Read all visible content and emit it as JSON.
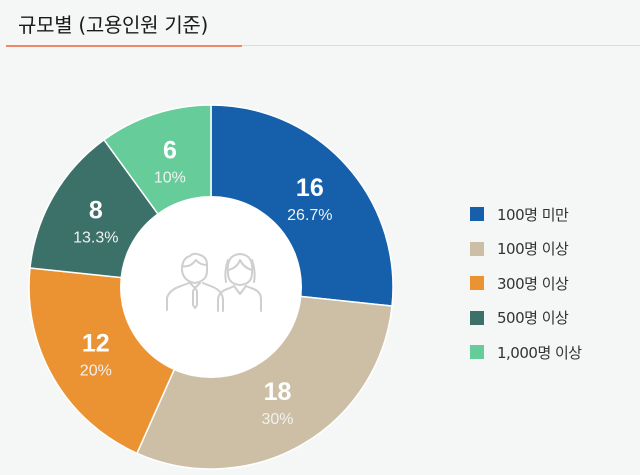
{
  "header": {
    "title": "규모별 (고용인원 기준)",
    "accent_color": "#f0866a"
  },
  "center_icon": "people-icon",
  "legend": [
    {
      "label": "100명 미만",
      "color": "#155fab"
    },
    {
      "label": "100명 이상",
      "color": "#cdbfa5"
    },
    {
      "label": "300명 이상",
      "color": "#eb9233"
    },
    {
      "label": "500명 이상",
      "color": "#3c716a"
    },
    {
      "label": "1,000명 이상",
      "color": "#66cc9a"
    }
  ],
  "chart_data": {
    "type": "pie",
    "variant": "donut",
    "title": "규모별 (고용인원 기준)",
    "categories": [
      "100명 미만",
      "100명 이상",
      "300명 이상",
      "500명 이상",
      "1,000명 이상"
    ],
    "values": [
      16,
      18,
      12,
      8,
      6
    ],
    "percentages": [
      "26.7%",
      "30%",
      "20%",
      "13.3%",
      "10%"
    ],
    "colors": [
      "#155fab",
      "#cdbfa5",
      "#eb9233",
      "#3c716a",
      "#66cc9a"
    ],
    "legend_position": "right",
    "start_angle": "12 o'clock, clockwise"
  }
}
